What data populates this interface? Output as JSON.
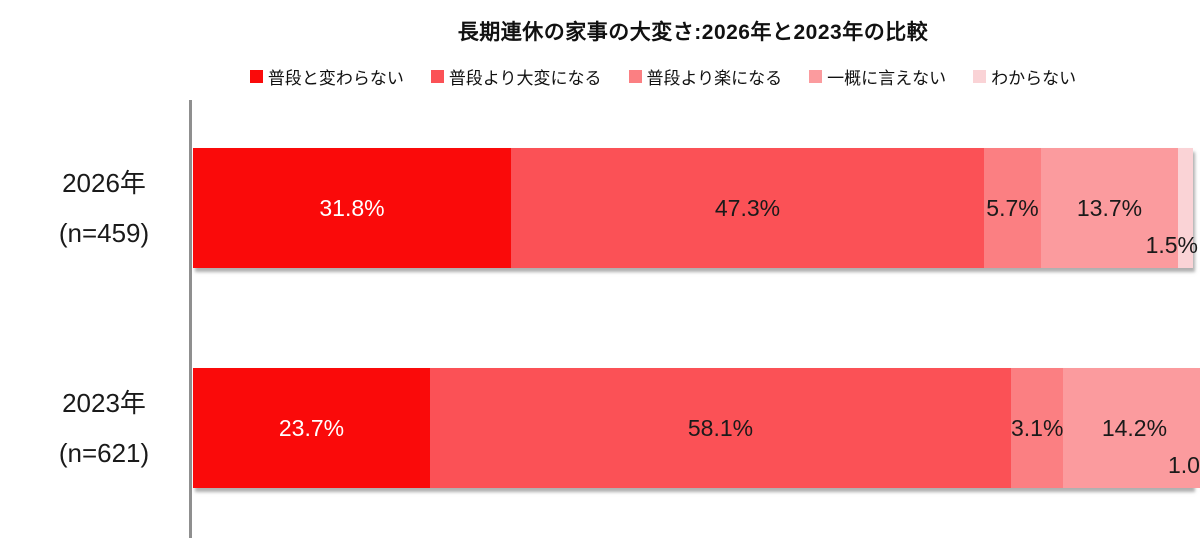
{
  "chart_data": {
    "type": "bar",
    "orientation": "horizontal",
    "stacked": true,
    "title": "長期連休の家事の大変さ:2026年と2023年の比較",
    "legend_position": "top",
    "xlim": [
      0,
      100
    ],
    "value_suffix": "%",
    "grid": false,
    "axis_line_color": "#8f8f8f",
    "categories": [
      "2026年",
      "2023年"
    ],
    "category_sublabels": [
      "(n=459)",
      "(n=621)"
    ],
    "series": [
      {
        "name": "普段と変わらない",
        "values": [
          31.8,
          23.7
        ],
        "color": "#fa0a0a",
        "label_color": "#ffffff",
        "label_position": "center"
      },
      {
        "name": "普段より大変になる",
        "values": [
          47.3,
          58.1
        ],
        "color": "#fb5156",
        "label_color": "#1a1a1a",
        "label_position": "center"
      },
      {
        "name": "普段より楽になる",
        "values": [
          5.7,
          3.1
        ],
        "color": "#fb7f82",
        "label_color": "#1a1a1a",
        "label_position": "center"
      },
      {
        "name": "一概に言えない",
        "values": [
          13.7,
          14.2
        ],
        "color": "#fb9b9e",
        "label_color": "#1a1a1a",
        "label_position": "center"
      },
      {
        "name": "わからない",
        "values": [
          1.5,
          1.0
        ],
        "color": "#fad3d6",
        "label_color": "#1a1a1a",
        "label_position": "below-right"
      }
    ]
  }
}
